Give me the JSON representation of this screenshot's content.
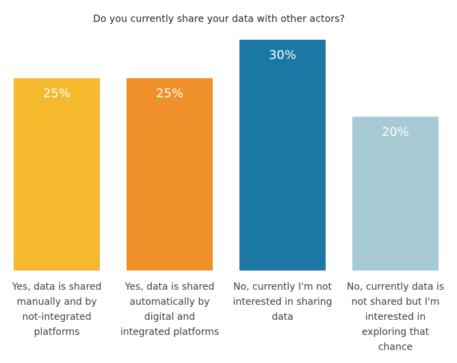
{
  "chart_data": {
    "type": "bar",
    "title": "Do you currently share your data with other actors?",
    "categories": [
      "Yes, data is shared manually and by not-integrated platforms",
      "Yes, data is shared automatically by digital and integrated platforms",
      "No, currently I'm not interested in sharing data",
      "No, currently data is not shared but I'm interested in exploring that chance"
    ],
    "category_lines": [
      [
        "Yes, data is shared",
        "manually and by",
        "not-integrated",
        "platforms"
      ],
      [
        "Yes, data is shared",
        "automatically by",
        "digital and",
        "integrated platforms"
      ],
      [
        "No, currently I'm not",
        "interested in sharing",
        "data"
      ],
      [
        "No, currently data is",
        "not shared but I'm",
        "interested in",
        "exploring that",
        "chance"
      ]
    ],
    "values": [
      25,
      25,
      30,
      20
    ],
    "value_labels": [
      "25%",
      "25%",
      "30%",
      "20%"
    ],
    "colors": [
      "#F4B92D",
      "#F0902A",
      "#1B77A4",
      "#A7CAD4"
    ],
    "ylim": [
      0,
      30
    ],
    "grid": false,
    "legend": "none"
  }
}
